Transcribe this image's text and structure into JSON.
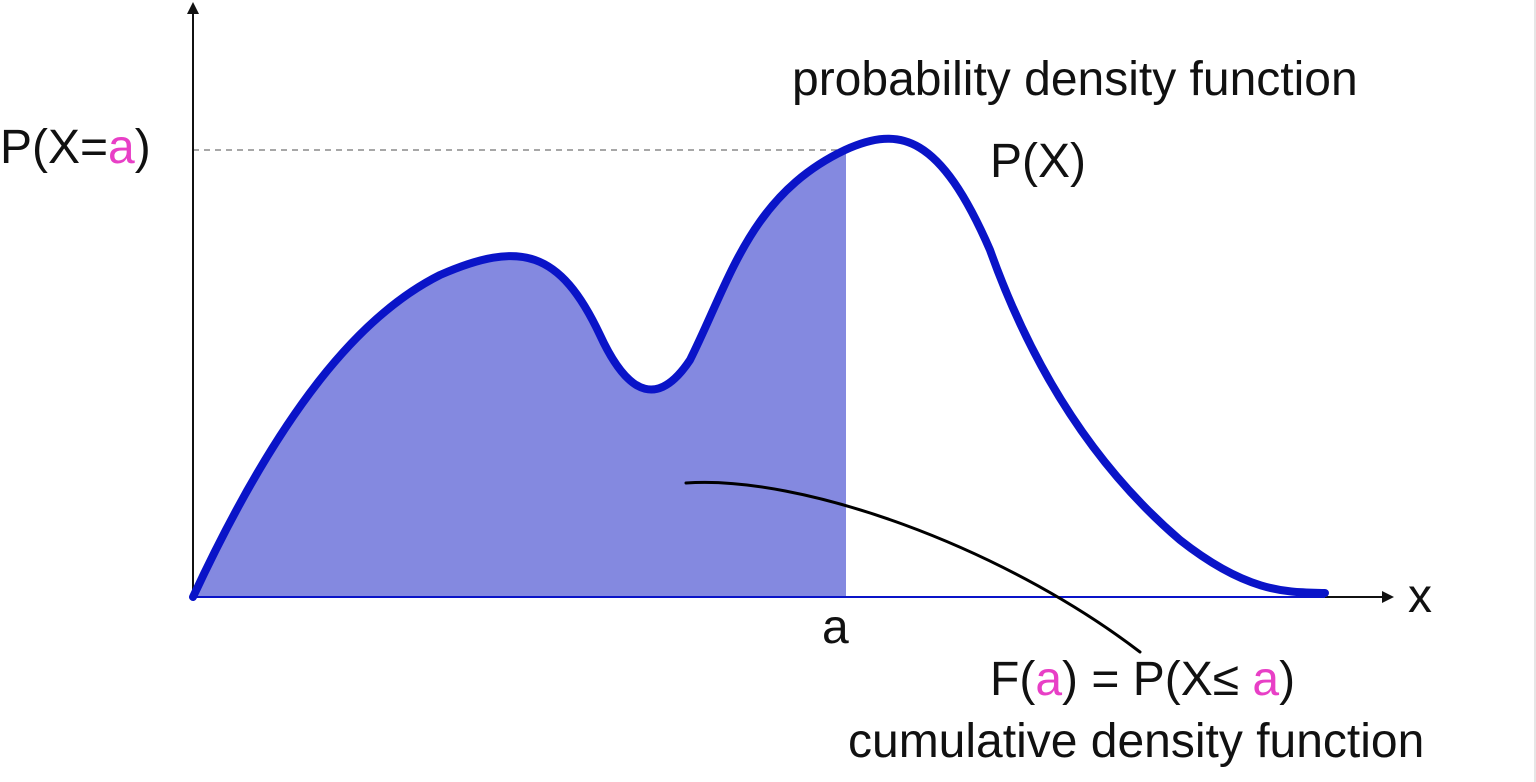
{
  "labels": {
    "pdf_title": "probability density function",
    "pdf_symbol": "P(X)",
    "y_marker_prefix": "P(X=",
    "y_marker_var": "a",
    "y_marker_suffix": ")",
    "x_axis": "x",
    "x_marker": "a",
    "cdf_prefix": "F(",
    "cdf_var1": "a",
    "cdf_mid": ") = P(X≤ ",
    "cdf_var2": "a",
    "cdf_suffix": ")",
    "cdf_title": "cumulative density function"
  },
  "colors": {
    "curve": "#0a14c8",
    "fill": "#8489e0",
    "highlight": "#e83fc6",
    "dashed": "#8a8a8a",
    "axis": "#111111",
    "pointer": "#000000"
  }
}
